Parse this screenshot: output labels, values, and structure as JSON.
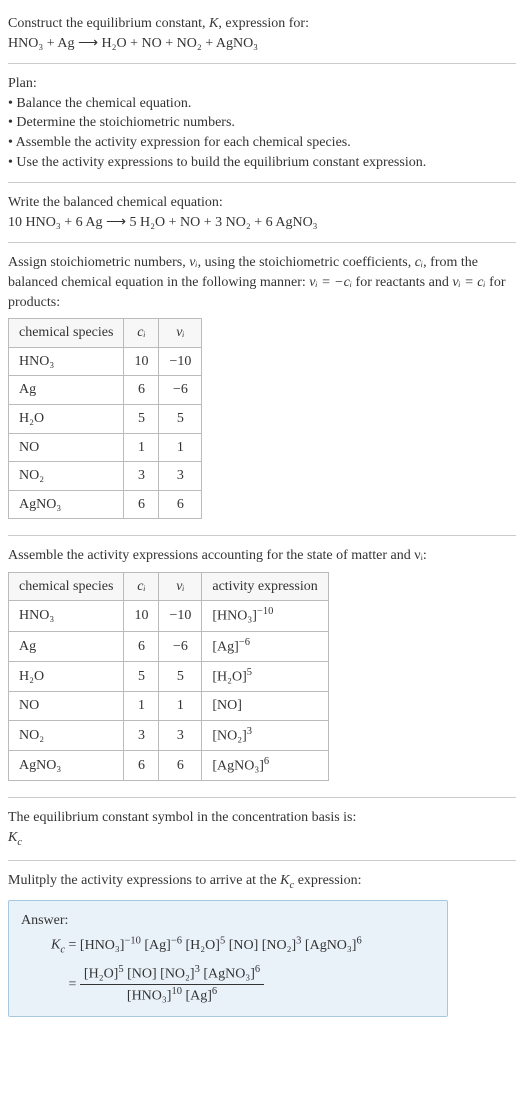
{
  "intro": {
    "line1": "Construct the equilibrium constant, ",
    "Kital": "K",
    "line1b": ", expression for:",
    "reaction": "HNO₃ + Ag ⟶ H₂O + NO + NO₂ + AgNO₃"
  },
  "plan": {
    "heading": "Plan:",
    "items": [
      "• Balance the chemical equation.",
      "• Determine the stoichiometric numbers.",
      "• Assemble the activity expression for each chemical species.",
      "• Use the activity expressions to build the equilibrium constant expression."
    ]
  },
  "balanced": {
    "heading": "Write the balanced chemical equation:",
    "equation": "10 HNO₃ + 6 Ag ⟶ 5 H₂O + NO + 3 NO₂ + 6 AgNO₃"
  },
  "assign": {
    "text1": "Assign stoichiometric numbers, ",
    "nu": "νᵢ",
    "text2": ", using the stoichiometric coefficients, ",
    "ci": "cᵢ",
    "text3": ", from the balanced chemical equation in the following manner: ",
    "eq1": "νᵢ = −cᵢ",
    "text4": " for reactants and ",
    "eq2": "νᵢ = cᵢ",
    "text5": " for products:"
  },
  "table1": {
    "headers": [
      "chemical species",
      "cᵢ",
      "νᵢ"
    ],
    "rows": [
      [
        "HNO₃",
        "10",
        "−10"
      ],
      [
        "Ag",
        "6",
        "−6"
      ],
      [
        "H₂O",
        "5",
        "5"
      ],
      [
        "NO",
        "1",
        "1"
      ],
      [
        "NO₂",
        "3",
        "3"
      ],
      [
        "AgNO₃",
        "6",
        "6"
      ]
    ]
  },
  "assemble": {
    "text": "Assemble the activity expressions accounting for the state of matter and νᵢ:"
  },
  "table2": {
    "headers": [
      "chemical species",
      "cᵢ",
      "νᵢ",
      "activity expression"
    ],
    "rows": [
      {
        "sp": "HNO₃",
        "c": "10",
        "v": "−10",
        "base": "[HNO₃]",
        "exp": "−10"
      },
      {
        "sp": "Ag",
        "c": "6",
        "v": "−6",
        "base": "[Ag]",
        "exp": "−6"
      },
      {
        "sp": "H₂O",
        "c": "5",
        "v": "5",
        "base": "[H₂O]",
        "exp": "5"
      },
      {
        "sp": "NO",
        "c": "1",
        "v": "1",
        "base": "[NO]",
        "exp": ""
      },
      {
        "sp": "NO₂",
        "c": "3",
        "v": "3",
        "base": "[NO₂]",
        "exp": "3"
      },
      {
        "sp": "AgNO₃",
        "c": "6",
        "v": "6",
        "base": "[AgNO₃]",
        "exp": "6"
      }
    ]
  },
  "symbol": {
    "line": "The equilibrium constant symbol in the concentration basis is:",
    "Kc": "K",
    "Kcsub": "c"
  },
  "multiply": {
    "line1": "Mulitply the activity expressions to arrive at the ",
    "Kc": "K",
    "Kcsub": "c",
    "line2": " expression:"
  },
  "answer": {
    "label": "Answer:",
    "Kc": "K",
    "Kcsub": "c",
    "terms": [
      {
        "b": "[HNO₃]",
        "e": "−10"
      },
      {
        "b": "[Ag]",
        "e": "−6"
      },
      {
        "b": "[H₂O]",
        "e": "5"
      },
      {
        "b": "[NO]",
        "e": ""
      },
      {
        "b": "[NO₂]",
        "e": "3"
      },
      {
        "b": "[AgNO₃]",
        "e": "6"
      }
    ],
    "num_terms": [
      {
        "b": "[H₂O]",
        "e": "5"
      },
      {
        "b": "[NO]",
        "e": ""
      },
      {
        "b": "[NO₂]",
        "e": "3"
      },
      {
        "b": "[AgNO₃]",
        "e": "6"
      }
    ],
    "den_terms": [
      {
        "b": "[HNO₃]",
        "e": "10"
      },
      {
        "b": "[Ag]",
        "e": "6"
      }
    ]
  }
}
